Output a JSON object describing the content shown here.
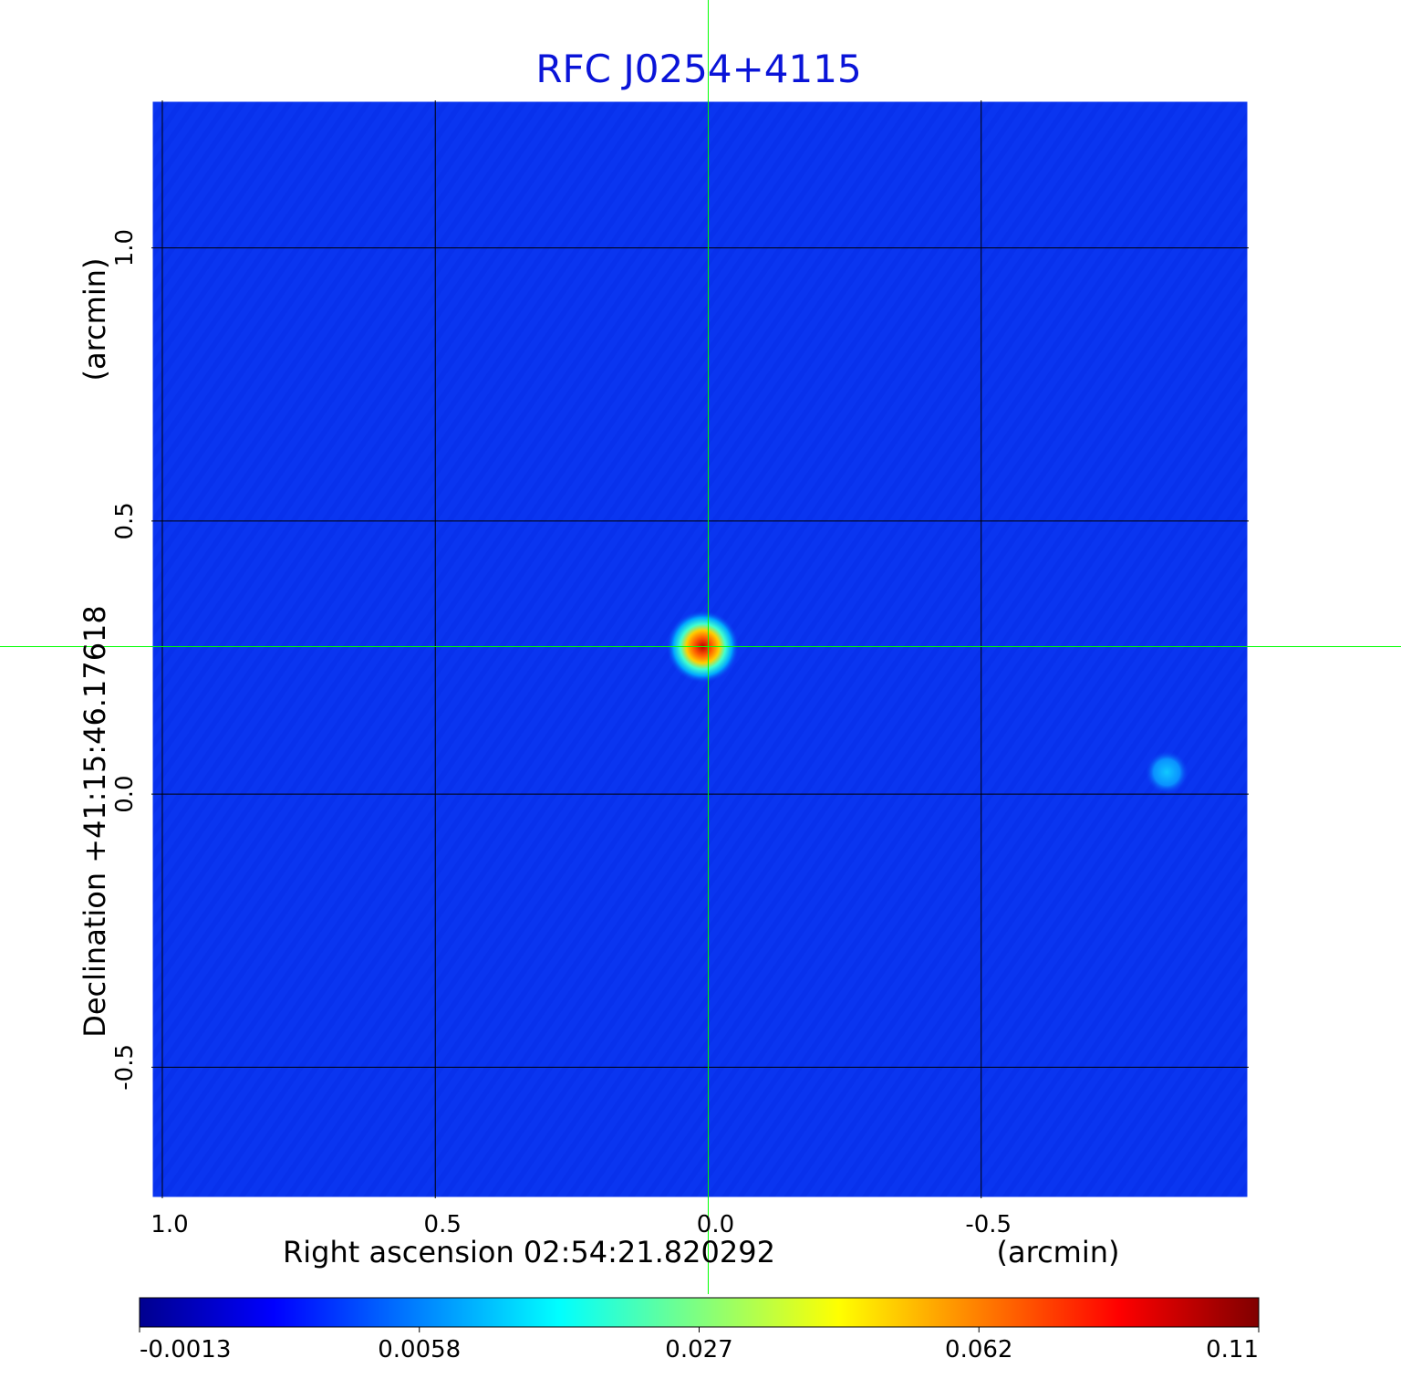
{
  "chart_data": {
    "type": "heatmap",
    "title": "RFC J0254+4115",
    "xlabel": "Right ascension  02:54:21.820292",
    "xunit": "(arcmin)",
    "ylabel": "Declination  +41:15:46.17618",
    "yunit": "(arcmin)",
    "xlim": [
      1.02,
      -0.99
    ],
    "ylim": [
      -0.74,
      1.27
    ],
    "x_ticks": [
      1.0,
      0.5,
      0.0,
      -0.5
    ],
    "x_tick_labels": [
      "1.0",
      "0.5",
      "0.0",
      "-0.5"
    ],
    "y_ticks": [
      1.0,
      0.5,
      0.0,
      -0.5
    ],
    "y_tick_labels": [
      "1.0",
      "0.5",
      "0.0",
      "-0.5"
    ],
    "grid": true,
    "crosshair": {
      "x": 0.0,
      "y": 0.27
    },
    "sources": [
      {
        "x": 0.01,
        "y": 0.27,
        "peak": 0.11
      },
      {
        "x": -0.84,
        "y": 0.04,
        "peak": 0.009
      }
    ],
    "colormap": "jet",
    "colorbar": {
      "ticks": [
        -0.0013,
        0.0058,
        0.027,
        0.062,
        0.11
      ],
      "tick_labels": [
        "-0.0013",
        "0.0058",
        "0.027",
        "0.062",
        "0.11"
      ],
      "stops": [
        "#00008f",
        "#0000ff",
        "#00ffff",
        "#ffff00",
        "#ff0000",
        "#800000"
      ]
    },
    "colors": {
      "background_field": "#0a35f0",
      "title": "#0a14d8",
      "crosshair": "#00ff00",
      "grid": "#000000"
    }
  }
}
